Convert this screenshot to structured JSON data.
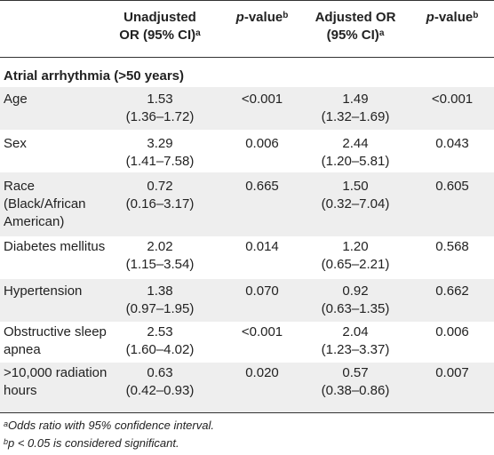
{
  "header": {
    "col1_line1": "Unadjusted",
    "col1_line2": "OR (95% CI)",
    "col1_sup": "a",
    "col2_prefix": "p",
    "col2_suffix": "-value",
    "col2_sup": "b",
    "col3_line1": "Adjusted OR",
    "col3_line2": "(95% CI)",
    "col3_sup": "a",
    "col4_prefix": "p",
    "col4_suffix": "-value",
    "col4_sup": "b"
  },
  "section": "Atrial arrhythmia (>50 years)",
  "rows": [
    {
      "label": [
        "Age"
      ],
      "unadj_or": "1.53",
      "unadj_ci": "(1.36–1.72)",
      "p1": "<0.001",
      "adj_or": "1.49",
      "adj_ci": "(1.32–1.69)",
      "p2": "<0.001"
    },
    {
      "label": [
        "Sex"
      ],
      "unadj_or": "3.29",
      "unadj_ci": "(1.41–7.58)",
      "p1": "0.006",
      "adj_or": "2.44",
      "adj_ci": "(1.20–5.81)",
      "p2": "0.043"
    },
    {
      "label": [
        "Race",
        "(Black/African",
        "American)"
      ],
      "unadj_or": "0.72",
      "unadj_ci": "(0.16–3.17)",
      "p1": "0.665",
      "adj_or": "1.50",
      "adj_ci": "(0.32–7.04)",
      "p2": "0.605"
    },
    {
      "label": [
        "Diabetes mellitus"
      ],
      "unadj_or": "2.02",
      "unadj_ci": "(1.15–3.54)",
      "p1": "0.014",
      "adj_or": "1.20",
      "adj_ci": "(0.65–2.21)",
      "p2": "0.568"
    },
    {
      "label": [
        "Hypertension"
      ],
      "unadj_or": "1.38",
      "unadj_ci": "(0.97–1.95)",
      "p1": "0.070",
      "adj_or": "0.92",
      "adj_ci": "(0.63–1.35)",
      "p2": "0.662"
    },
    {
      "label": [
        "Obstructive sleep",
        "apnea"
      ],
      "unadj_or": "2.53",
      "unadj_ci": "(1.60–4.02)",
      "p1": "<0.001",
      "adj_or": "2.04",
      "adj_ci": "(1.23–3.37)",
      "p2": "0.006"
    },
    {
      "label": [
        ">10,000 radiation",
        "hours"
      ],
      "unadj_or": "0.63",
      "unadj_ci": "(0.42–0.93)",
      "p1": "0.020",
      "adj_or": "0.57",
      "adj_ci": "(0.38–0.86)",
      "p2": "0.007"
    }
  ],
  "footnotes": {
    "a_sup": "a",
    "a_text": "Odds ratio with 95% confidence interval.",
    "b_sup": "b",
    "b_text": "p < 0.05 is considered significant."
  }
}
